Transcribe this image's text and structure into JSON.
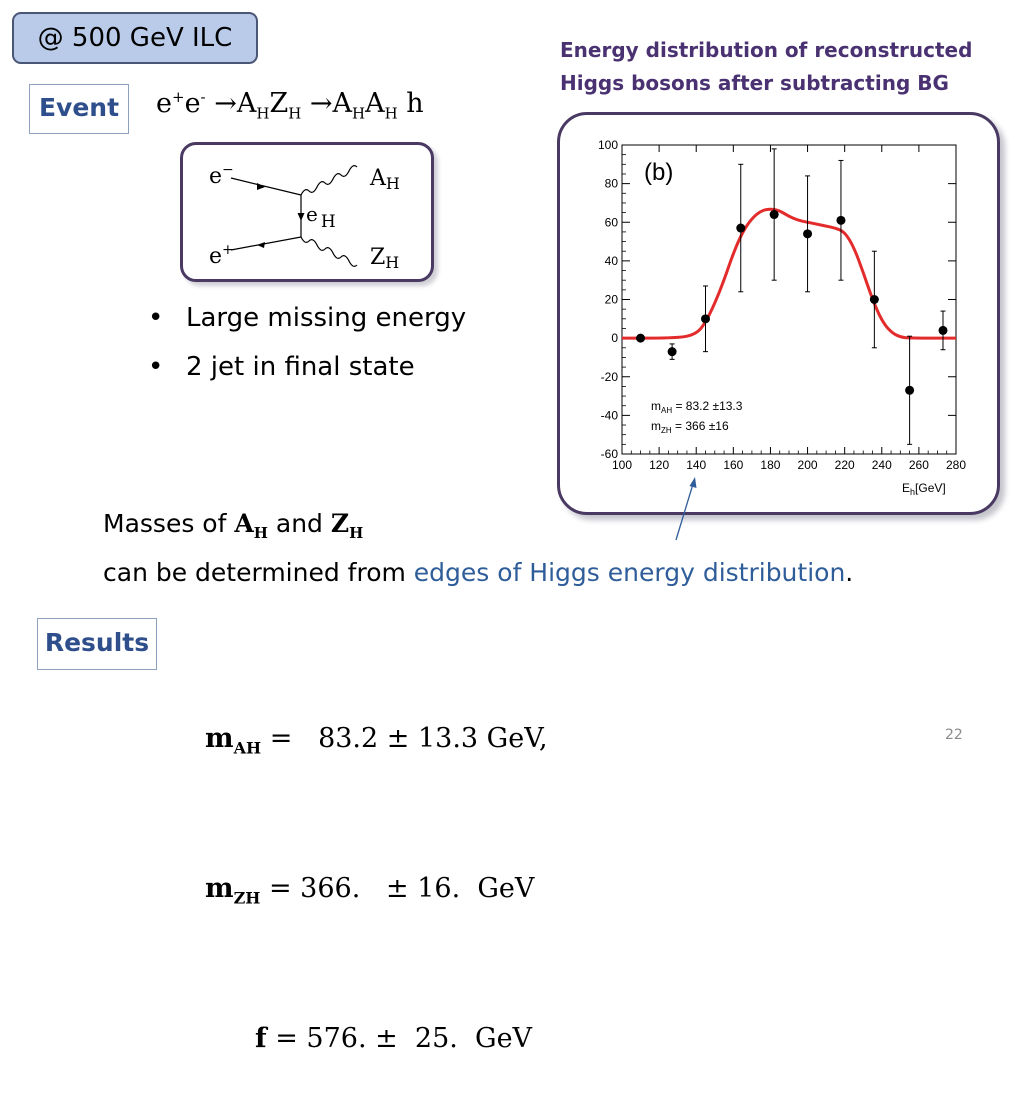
{
  "title": "@ 500 GeV ILC",
  "event": {
    "label": "Event",
    "reaction": {
      "e": "e",
      "plus": "+",
      "e2": "e",
      "minus": "-",
      "arrow": "→",
      "A": "A",
      "H": "H",
      "Z": "Z",
      "h": "h"
    },
    "diagram": {
      "e_minus": "e",
      "e_minus_sup": "−",
      "e_plus": "e",
      "e_plus_sup": "+",
      "eH_e": "e",
      "eH_H": "H",
      "AH_A": "A",
      "AH_H": "H",
      "ZH_Z": "Z",
      "ZH_H": "H"
    }
  },
  "bullets": [
    "Large missing energy",
    "2 jet in final state"
  ],
  "plot_caption": [
    "Energy distribution of reconstructed",
    "Higgs bosons after subtracting BG"
  ],
  "chart_data": {
    "type": "scatter",
    "panel_label": "(b)",
    "xlabel_main": "E",
    "xlabel_sub": "h",
    "xlabel_unit": "[GeV]",
    "xlim": [
      100,
      280
    ],
    "ylim": [
      -60,
      100
    ],
    "x_ticks": [
      100,
      120,
      140,
      160,
      180,
      200,
      220,
      240,
      260,
      280
    ],
    "y_ticks": [
      -60,
      -40,
      -20,
      0,
      20,
      40,
      60,
      80,
      100
    ],
    "points": [
      {
        "x": 110,
        "y": 0,
        "err": 0
      },
      {
        "x": 127,
        "y": -7,
        "err": 4
      },
      {
        "x": 145,
        "y": 10,
        "err": 17
      },
      {
        "x": 164,
        "y": 57,
        "err": 33
      },
      {
        "x": 182,
        "y": 64,
        "err": 34
      },
      {
        "x": 200,
        "y": 54,
        "err": 30
      },
      {
        "x": 218,
        "y": 61,
        "err": 31
      },
      {
        "x": 236,
        "y": 20,
        "err": 25
      },
      {
        "x": 255,
        "y": -27,
        "err": 28
      },
      {
        "x": 273,
        "y": 4,
        "err": 10
      }
    ],
    "fit_curve": {
      "color": "#e32b2b",
      "points": [
        [
          100,
          0
        ],
        [
          130,
          0
        ],
        [
          140,
          2
        ],
        [
          145,
          8
        ],
        [
          150,
          18
        ],
        [
          155,
          30
        ],
        [
          160,
          44
        ],
        [
          165,
          55
        ],
        [
          170,
          62
        ],
        [
          175,
          66
        ],
        [
          180,
          67
        ],
        [
          185,
          66
        ],
        [
          190,
          63
        ],
        [
          195,
          61
        ],
        [
          200,
          60
        ],
        [
          205,
          59
        ],
        [
          210,
          58
        ],
        [
          215,
          57
        ],
        [
          220,
          55
        ],
        [
          225,
          47
        ],
        [
          230,
          34
        ],
        [
          235,
          20
        ],
        [
          240,
          9
        ],
        [
          245,
          3
        ],
        [
          250,
          0.5
        ],
        [
          255,
          0
        ],
        [
          280,
          0
        ]
      ]
    },
    "annotation_lines": [
      {
        "m": "m",
        "sub": "AH",
        "text": " = 83.2 ±13.3"
      },
      {
        "m": "m",
        "sub": "ZH",
        "text": " = 366 ±16"
      }
    ]
  },
  "masses": {
    "line1_prefix": "Masses of ",
    "A": "A",
    "H1": "H",
    "and": " and ",
    "Z": "Z",
    "H2": "H",
    "line2_prefix": "can be determined from ",
    "highlight": "edges of Higgs energy distribution",
    "period": "."
  },
  "results": {
    "label": "Results",
    "rows": [
      {
        "sym": "m",
        "sub": "AH",
        "eq": " =   83.2 ± 13.3 GeV,"
      },
      {
        "sym": "m",
        "sub": "ZH",
        "eq": " = 366.   ± 16.  GeV"
      },
      {
        "sym": "f",
        "sub": "",
        "eq": " = 576. ±  25.  GeV"
      }
    ]
  },
  "page_number": "22",
  "colors": {
    "accent_purple": "#4a3272",
    "label_blue": "#2e4f8c",
    "highlight_blue": "#2f5d9a",
    "title_fill": "#b9cbe8",
    "fit_red": "#e32b2b"
  }
}
